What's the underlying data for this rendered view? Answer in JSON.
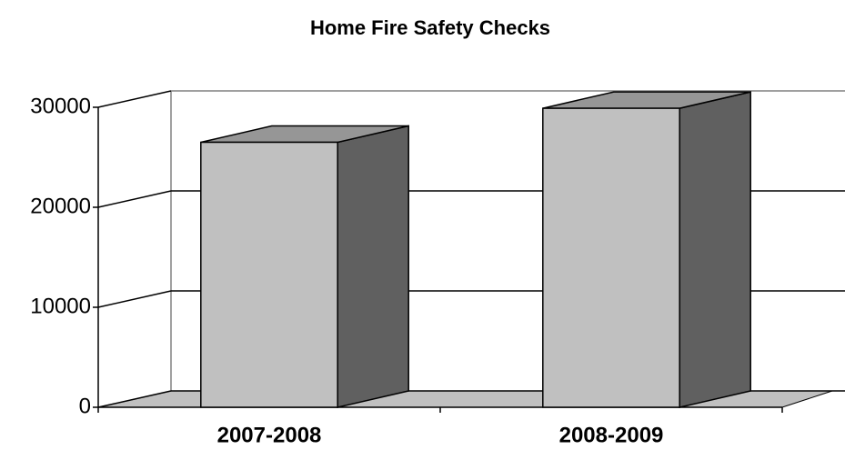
{
  "chart_data": {
    "type": "bar3d",
    "title": "Home Fire Safety Checks",
    "categories": [
      "2007-2008",
      "2008-2009"
    ],
    "values": [
      26500,
      29900
    ],
    "colors": {
      "front": "#c0c0c0",
      "side": "#606060",
      "top": "#969696",
      "floor": "#c0c0c0"
    },
    "ylim": [
      0,
      30000
    ],
    "yticks": [
      0,
      10000,
      20000,
      30000
    ],
    "grid": true
  }
}
